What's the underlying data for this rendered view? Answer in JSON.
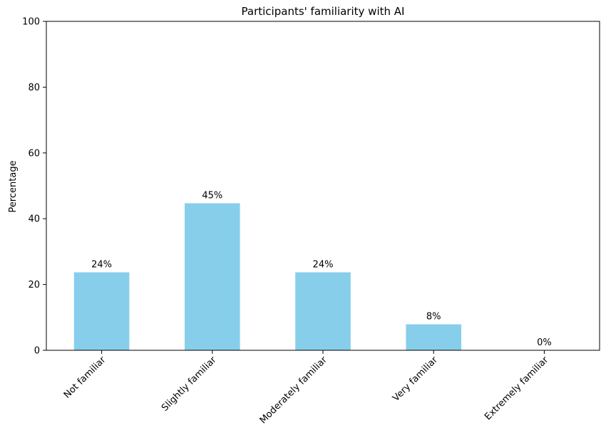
{
  "chart_data": {
    "type": "bar",
    "title": "Participants' familiarity with AI",
    "xlabel": "",
    "ylabel": "Percentage",
    "categories": [
      "Not familiar",
      "Slightly familiar",
      "Moderately familiar",
      "Very familiar",
      "Extremely familiar"
    ],
    "values": [
      23.7,
      44.7,
      23.7,
      7.9,
      0
    ],
    "value_labels": [
      "24%",
      "45%",
      "24%",
      "8%",
      "0%"
    ],
    "ylim": [
      0,
      100
    ],
    "yticks": [
      "0",
      "20",
      "40",
      "60",
      "80",
      "100"
    ],
    "grid": false,
    "bar_color": "#87ceeb"
  }
}
